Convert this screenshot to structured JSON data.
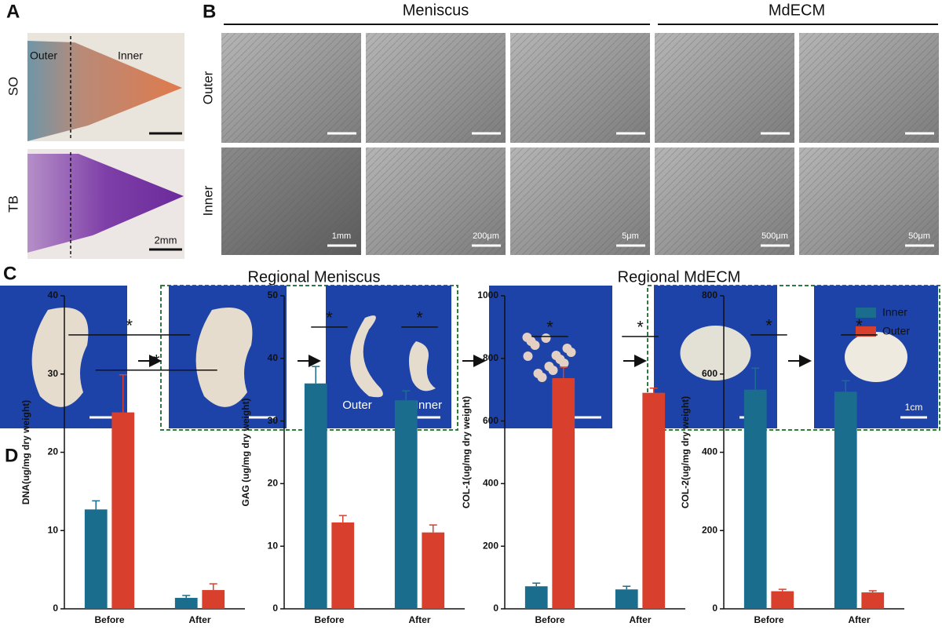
{
  "figure": {
    "panels": [
      "A",
      "B",
      "C",
      "D"
    ],
    "a": {
      "rows": [
        "SO",
        "TB"
      ],
      "regions": [
        "Outer",
        "Inner"
      ],
      "scale": "2mm"
    },
    "b": {
      "groups": [
        "Meniscus",
        "MdECM"
      ],
      "rows": [
        "Outer",
        "Inner"
      ],
      "scales": [
        "1mm",
        "200μm",
        "5μm",
        "500μm",
        "50μm"
      ]
    },
    "c": {
      "groups": [
        "Regional Meniscus",
        "Regional MdECM"
      ],
      "pieces": [
        "Outer",
        "Inner"
      ],
      "scale": "1cm"
    },
    "legend": [
      {
        "name": "Inner",
        "color": "#1b6d8e"
      },
      {
        "name": "Outer",
        "color": "#d8402d"
      }
    ]
  },
  "chart_data": [
    {
      "type": "bar",
      "ylabel": "DNA(ug/mg dry weight)",
      "categories": [
        "Before",
        "After"
      ],
      "series": [
        {
          "values": [
            12.7,
            1.4
          ],
          "errors": [
            1.1,
            0.3
          ]
        },
        {
          "values": [
            25.1,
            2.4
          ],
          "errors": [
            4.8,
            0.8
          ]
        }
      ],
      "ylim": [
        0,
        40
      ],
      "yticks": [
        0,
        10,
        20,
        30,
        40
      ],
      "annotations": [
        {
          "text": "*",
          "y": 35,
          "series": 0
        },
        {
          "text": "*",
          "y": 30.5,
          "series": 1
        }
      ]
    },
    {
      "type": "bar",
      "ylabel": "GAG (ug/mg dry weight)",
      "categories": [
        "Before",
        "After"
      ],
      "series": [
        {
          "values": [
            36.0,
            33.3
          ],
          "errors": [
            2.7,
            1.5
          ]
        },
        {
          "values": [
            13.8,
            12.2
          ],
          "errors": [
            1.1,
            1.2
          ]
        }
      ],
      "ylim": [
        0,
        50
      ],
      "yticks": [
        0,
        10,
        20,
        30,
        40,
        50
      ],
      "annotations": [
        {
          "text": "*",
          "y": 45,
          "category": 0
        },
        {
          "text": "*",
          "y": 45,
          "category": 1
        }
      ]
    },
    {
      "type": "bar",
      "ylabel": "COL-1(ug/mg dry weight)",
      "categories": [
        "Before",
        "After"
      ],
      "series": [
        {
          "values": [
            72,
            62
          ],
          "errors": [
            10,
            10
          ]
        },
        {
          "values": [
            737,
            690
          ],
          "errors": [
            35,
            15
          ]
        }
      ],
      "ylim": [
        0,
        1000
      ],
      "yticks": [
        0,
        200,
        400,
        600,
        800,
        1000
      ],
      "annotations": [
        {
          "text": "*",
          "y": 870,
          "category": 0
        },
        {
          "text": "*",
          "y": 870,
          "category": 1
        }
      ]
    },
    {
      "type": "bar",
      "ylabel": "COL-2(ug/mg dry weight)",
      "categories": [
        "Before",
        "After"
      ],
      "series": [
        {
          "values": [
            560,
            555
          ],
          "errors": [
            55,
            28
          ]
        },
        {
          "values": [
            45,
            42
          ],
          "errors": [
            5,
            4
          ]
        }
      ],
      "ylim": [
        0,
        800
      ],
      "yticks": [
        0,
        200,
        400,
        600,
        800
      ],
      "annotations": [
        {
          "text": "*",
          "y": 700,
          "category": 0
        },
        {
          "text": "*",
          "y": 700,
          "category": 1
        }
      ]
    }
  ]
}
